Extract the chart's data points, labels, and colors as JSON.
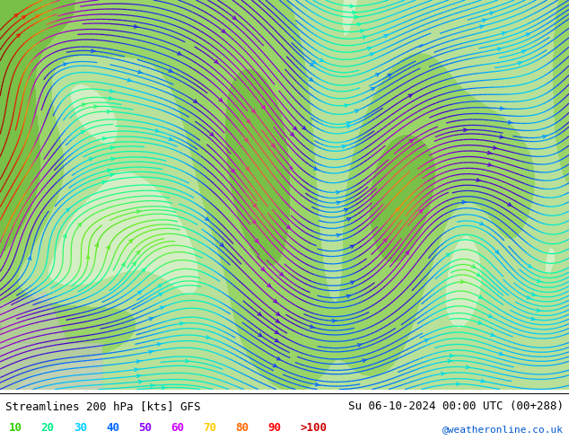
{
  "title_left": "Streamlines 200 hPa [kts] GFS",
  "title_right": "Su 06-10-2024 00:00 UTC (00+288)",
  "credit": "@weatheronline.co.uk",
  "legend_values": [
    "10",
    "20",
    "30",
    "40",
    "50",
    "60",
    "70",
    "80",
    "90",
    ">100"
  ],
  "legend_colors": [
    "#33cc00",
    "#00ee88",
    "#00ccff",
    "#0066ff",
    "#8800ff",
    "#cc00ff",
    "#ffcc00",
    "#ff6600",
    "#ff0000",
    "#cc0000"
  ],
  "land_color": "#c8dfc8",
  "sea_color": "#d8d8d8",
  "bg_color": "#e0e0e0",
  "title_fontsize": 9,
  "legend_fontsize": 9,
  "streamline_lw": 0.9,
  "streamline_density": 3.0,
  "arrow_size": 0.7
}
